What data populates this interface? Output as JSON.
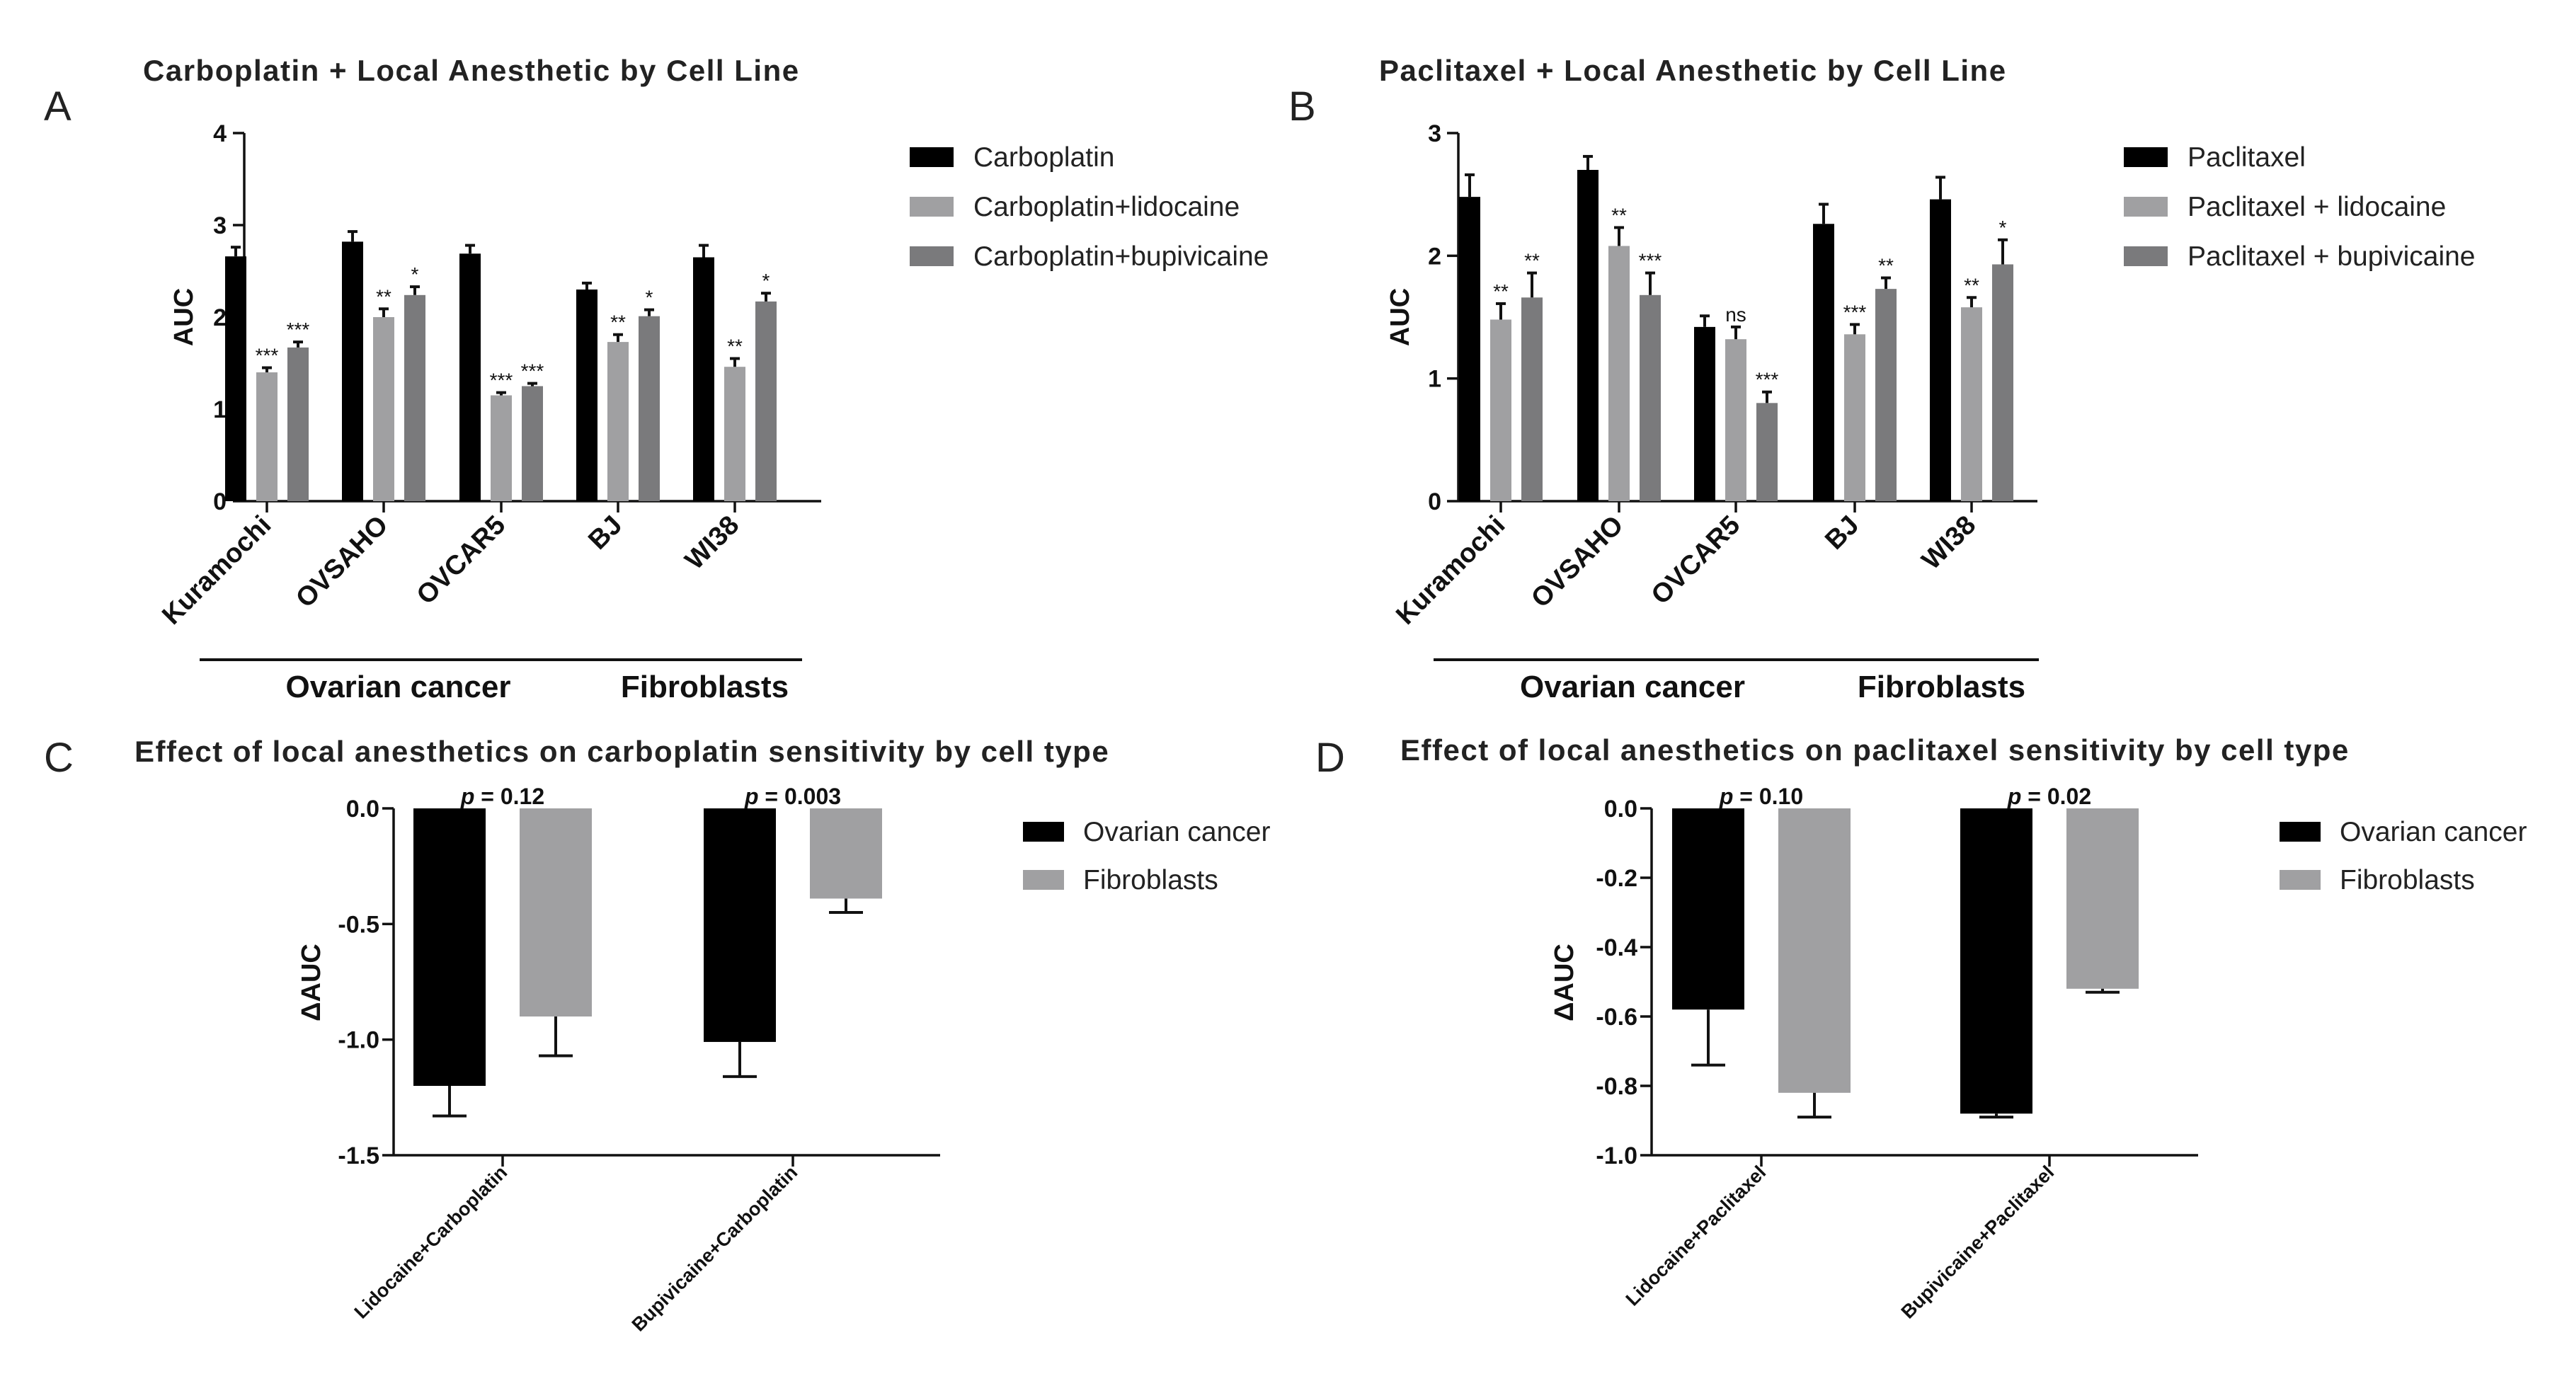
{
  "chart_data": [
    {
      "panel": "A",
      "type": "bar",
      "title": "Carboplatin + Local Anesthetic by Cell Line",
      "ylabel": "AUC",
      "xlabel": "",
      "ylim": [
        0,
        4
      ],
      "yticks": [
        "0",
        "1",
        "2",
        "3",
        "4"
      ],
      "yticks_values": [
        0,
        1,
        2,
        3,
        4
      ],
      "categories": [
        "Kuramochi",
        "OVSAHO",
        "OVCAR5",
        "BJ",
        "WI38"
      ],
      "series": [
        {
          "name": "Carboplatin",
          "color": "#000000",
          "values": [
            2.66,
            2.82,
            2.69,
            2.3,
            2.65
          ],
          "errors": [
            0.1,
            0.11,
            0.09,
            0.07,
            0.13
          ],
          "sig": [
            "",
            "",
            "",
            "",
            ""
          ]
        },
        {
          "name": "Carboplatin+lidocaine",
          "color": "#a0a0a2",
          "values": [
            1.4,
            2.0,
            1.15,
            1.73,
            1.46
          ],
          "errors": [
            0.05,
            0.09,
            0.03,
            0.08,
            0.09
          ],
          "sig": [
            "***",
            "**",
            "***",
            "**",
            "**"
          ]
        },
        {
          "name": "Carboplatin+bupivicaine",
          "color": "#7a7a7c",
          "values": [
            1.67,
            2.24,
            1.25,
            2.01,
            2.17
          ],
          "errors": [
            0.06,
            0.09,
            0.03,
            0.07,
            0.09
          ],
          "sig": [
            "***",
            "*",
            "***",
            "*",
            "*"
          ]
        }
      ],
      "groups": [
        {
          "label": "Ovarian cancer",
          "from": 0,
          "to": 2
        },
        {
          "label": "Fibroblasts",
          "from": 3,
          "to": 4
        }
      ]
    },
    {
      "panel": "B",
      "type": "bar",
      "title": "Paclitaxel + Local Anesthetic by Cell Line",
      "ylabel": "AUC",
      "xlabel": "",
      "ylim": [
        0,
        3
      ],
      "yticks": [
        "0",
        "1",
        "2",
        "3"
      ],
      "yticks_values": [
        0,
        1,
        2,
        3
      ],
      "categories": [
        "Kuramochi",
        "OVSAHO",
        "OVCAR5",
        "BJ",
        "WI38"
      ],
      "series": [
        {
          "name": "Paclitaxel",
          "color": "#000000",
          "values": [
            2.48,
            2.7,
            1.42,
            2.26,
            2.46
          ],
          "errors": [
            0.18,
            0.11,
            0.09,
            0.16,
            0.18
          ],
          "sig": [
            "",
            "",
            "",
            "",
            ""
          ]
        },
        {
          "name": "Paclitaxel + lidocaine",
          "color": "#a0a0a2",
          "values": [
            1.48,
            2.08,
            1.32,
            1.36,
            1.58
          ],
          "errors": [
            0.13,
            0.15,
            0.1,
            0.08,
            0.08
          ],
          "sig": [
            "**",
            "**",
            "ns",
            "***",
            "**"
          ]
        },
        {
          "name": "Paclitaxel + bupivicaine",
          "color": "#7a7a7c",
          "values": [
            1.66,
            1.68,
            0.8,
            1.73,
            1.93
          ],
          "errors": [
            0.2,
            0.18,
            0.09,
            0.09,
            0.2
          ],
          "sig": [
            "**",
            "***",
            "***",
            "**",
            "*"
          ]
        }
      ],
      "groups": [
        {
          "label": "Ovarian cancer",
          "from": 0,
          "to": 2
        },
        {
          "label": "Fibroblasts",
          "from": 3,
          "to": 4
        }
      ]
    },
    {
      "panel": "C",
      "type": "bar",
      "title": "Effect of local anesthetics on carboplatin sensitivity by cell type",
      "ylabel": "ΔAUC",
      "xlabel": "",
      "ylim": [
        -1.5,
        0
      ],
      "yticks": [
        "0.0",
        "-0.5",
        "-1.0",
        "-1.5"
      ],
      "yticks_values": [
        0,
        -0.5,
        -1.0,
        -1.5
      ],
      "categories": [
        "Lidocaine+Carboplatin",
        "Bupivicaine+Carboplatin"
      ],
      "series": [
        {
          "name": "Ovarian cancer",
          "color": "#000000",
          "values": [
            -1.2,
            -1.01
          ],
          "errors": [
            0.13,
            0.15
          ]
        },
        {
          "name": "Fibroblasts",
          "color": "#a0a0a2",
          "values": [
            -0.9,
            -0.39
          ],
          "errors": [
            0.17,
            0.06
          ]
        }
      ],
      "pvalues": [
        "= 0.12",
        "= 0.003"
      ],
      "p_symbol": "p"
    },
    {
      "panel": "D",
      "type": "bar",
      "title": "Effect of local anesthetics on paclitaxel sensitivity by cell type",
      "ylabel": "ΔAUC",
      "xlabel": "",
      "ylim": [
        -1.0,
        0
      ],
      "yticks": [
        "0.0",
        "-0.2",
        "-0.4",
        "-0.6",
        "-0.8",
        "-1.0"
      ],
      "yticks_values": [
        0,
        -0.2,
        -0.4,
        -0.6,
        -0.8,
        -1.0
      ],
      "categories": [
        "Lidocaine+Paclitaxel",
        "Bupivicaine+Paclitaxel"
      ],
      "series": [
        {
          "name": "Ovarian cancer",
          "color": "#000000",
          "values": [
            -0.58,
            -0.88
          ],
          "errors": [
            0.16,
            0.01
          ]
        },
        {
          "name": "Fibroblasts",
          "color": "#a0a0a2",
          "values": [
            -0.82,
            -0.52
          ],
          "errors": [
            0.07,
            0.01
          ]
        }
      ],
      "pvalues": [
        "= 0.10",
        "= 0.02"
      ],
      "p_symbol": "p"
    }
  ]
}
